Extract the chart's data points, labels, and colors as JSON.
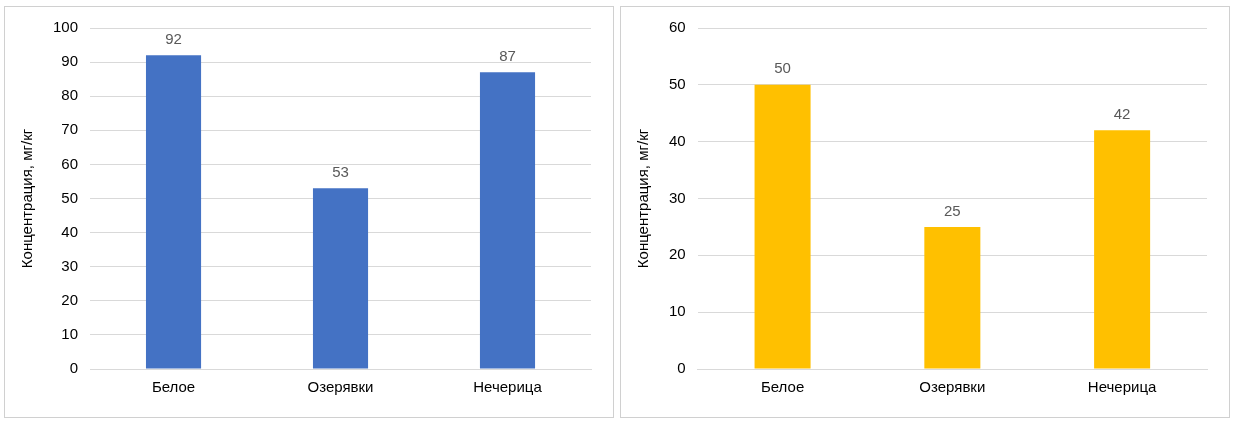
{
  "chart_data": [
    {
      "type": "bar",
      "ylabel": "Концентрация, мг/кг",
      "categories": [
        "Белое",
        "Озерявки",
        "Нечерица"
      ],
      "values": [
        92,
        53,
        87
      ],
      "color": "#4472c4",
      "ylim": [
        0,
        100
      ],
      "yticks": [
        0,
        10,
        20,
        30,
        40,
        50,
        60,
        70,
        80,
        90,
        100
      ],
      "grid": "y",
      "data_labels": true
    },
    {
      "type": "bar",
      "ylabel": "Концентрация, мг/кг",
      "categories": [
        "Белое",
        "Озерявки",
        "Нечерица"
      ],
      "values": [
        50,
        25,
        42
      ],
      "color": "#ffc000",
      "ylim": [
        0,
        60
      ],
      "yticks": [
        0,
        10,
        20,
        30,
        40,
        50,
        60
      ],
      "grid": "y",
      "data_labels": true
    }
  ]
}
